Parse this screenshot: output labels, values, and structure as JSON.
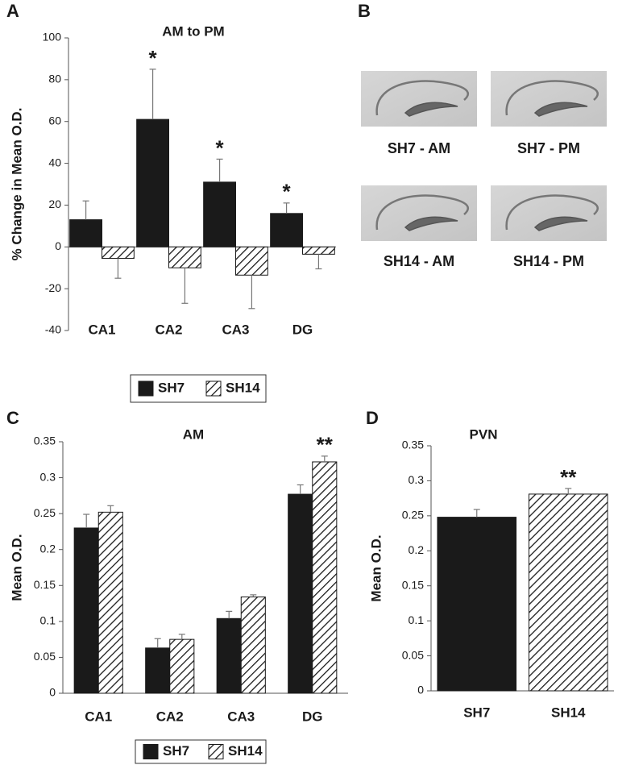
{
  "chart_data": [
    {
      "type": "bar",
      "panel_label": "A",
      "title": "AM to PM",
      "y_label": "% Change in Mean O.D.",
      "categories": [
        "CA1",
        "CA2",
        "CA3",
        "DG"
      ],
      "series": [
        {
          "name": "SH7",
          "color": "#1a1a1a",
          "fill": "solid",
          "values": [
            13,
            61,
            31,
            16
          ],
          "errors": [
            9,
            24,
            11,
            5
          ],
          "annotations": [
            null,
            "*",
            "*",
            "*"
          ]
        },
        {
          "name": "SH14",
          "color": "#1a1a1a",
          "fill": "hatch",
          "values": [
            -5.5,
            -10,
            -13.5,
            -3.5
          ],
          "errors": [
            9.5,
            17,
            16,
            7
          ],
          "annotations": [
            null,
            null,
            null,
            null
          ]
        }
      ],
      "ylim": [
        -40,
        100
      ],
      "yticks": [
        -40,
        -20,
        0,
        20,
        40,
        60,
        80,
        100
      ],
      "legend": "bottom"
    },
    {
      "type": "bar",
      "panel_label": "C",
      "title": "AM",
      "y_label": "Mean O.D.",
      "categories": [
        "CA1",
        "CA2",
        "CA3",
        "DG"
      ],
      "series": [
        {
          "name": "SH7",
          "color": "#1a1a1a",
          "fill": "solid",
          "values": [
            0.23,
            0.063,
            0.104,
            0.277
          ],
          "errors": [
            0.019,
            0.013,
            0.01,
            0.013
          ],
          "annotations": [
            null,
            null,
            null,
            null
          ]
        },
        {
          "name": "SH14",
          "color": "#1a1a1a",
          "fill": "hatch",
          "values": [
            0.252,
            0.075,
            0.134,
            0.322
          ],
          "errors": [
            0.009,
            0.007,
            0.003,
            0.008
          ],
          "annotations": [
            null,
            null,
            null,
            "**"
          ]
        }
      ],
      "ylim": [
        0,
        0.35
      ],
      "yticks": [
        0,
        0.05,
        0.1,
        0.15,
        0.2,
        0.25,
        0.3,
        0.35
      ],
      "legend": "bottom"
    },
    {
      "type": "bar",
      "panel_label": "D",
      "title": "PVN",
      "y_label": "Mean O.D.",
      "categories": [
        "SH7",
        "SH14"
      ],
      "series": [
        {
          "color": "#1a1a1a",
          "fills": [
            "solid",
            "hatch"
          ],
          "values": [
            0.248,
            0.281
          ],
          "errors": [
            0.011,
            0.008
          ],
          "annotations": [
            null,
            "**"
          ]
        }
      ],
      "ylim": [
        0,
        0.35
      ],
      "yticks": [
        0,
        0.05,
        0.1,
        0.15,
        0.2,
        0.25,
        0.3,
        0.35
      ]
    }
  ],
  "image_panel": {
    "panel_label": "B",
    "images": [
      {
        "caption": "SH7 - AM"
      },
      {
        "caption": "SH7 - PM"
      },
      {
        "caption": "SH14 - AM"
      },
      {
        "caption": "SH14 - PM"
      }
    ]
  }
}
